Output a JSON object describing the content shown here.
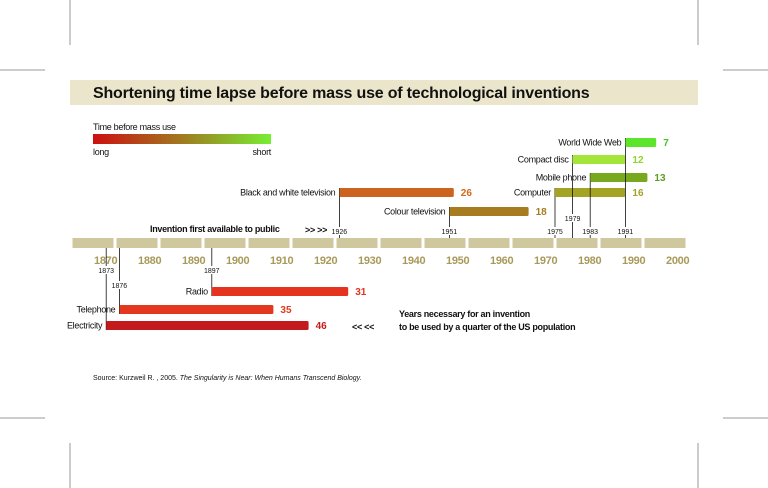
{
  "header": {
    "title": "Shortening time lapse before mass use of technological inventions"
  },
  "legend": {
    "title": "Time before mass use",
    "low_label": "long",
    "high_label": "short",
    "gradient_colors": [
      "#cc1010",
      "#a07a20",
      "#77ee33"
    ]
  },
  "annotations": {
    "invention_label": "Invention first available to public",
    "right_arrows": ">> >>",
    "years_note_line1": "Years necessary for an invention",
    "years_note_line2": "to be used by a quarter of the US population",
    "left_arrows": "<< <<"
  },
  "source": {
    "prefix": "Source: Kurzweil R. , 2005. ",
    "title": "The Singularity is Near: When Humans Transcend Biology."
  },
  "chart_data": {
    "type": "timeline-bar",
    "title": "Shortening time lapse before mass use of technological inventions",
    "xlabel": "",
    "ylabel": "",
    "xlim": [
      1865,
      2005
    ],
    "tick_labels": [
      "1870",
      "1880",
      "1890",
      "1900",
      "1910",
      "1920",
      "1930",
      "1940",
      "1950",
      "1960",
      "1970",
      "1980",
      "1990",
      "2000"
    ],
    "tick_values": [
      1870,
      1880,
      1890,
      1900,
      1910,
      1920,
      1930,
      1940,
      1950,
      1960,
      1970,
      1980,
      1990,
      2000
    ],
    "series": [
      {
        "name": "Electricity",
        "start": 1873,
        "years": 46,
        "year_label": "1873",
        "value_label": "46",
        "color": "#c31a1e",
        "value_color": "#c31a1e",
        "side": "below"
      },
      {
        "name": "Telephone",
        "start": 1876,
        "years": 35,
        "year_label": "1876",
        "value_label": "35",
        "color": "#e3381f",
        "value_color": "#e3381f",
        "side": "below"
      },
      {
        "name": "Radio",
        "start": 1897,
        "years": 31,
        "year_label": "1897",
        "value_label": "31",
        "color": "#e4331f",
        "value_color": "#e4331f",
        "side": "below"
      },
      {
        "name": "Black and white television",
        "start": 1926,
        "years": 26,
        "year_label": "1926",
        "value_label": "26",
        "color": "#cc6420",
        "value_color": "#d2691e",
        "side": "above"
      },
      {
        "name": "Colour television",
        "start": 1951,
        "years": 18,
        "year_label": "1951",
        "value_label": "18",
        "color": "#a67c1e",
        "value_color": "#a67c1e",
        "side": "above"
      },
      {
        "name": "Computer",
        "start": 1975,
        "years": 16,
        "year_label": "1975",
        "value_label": "16",
        "color": "#a5a324",
        "value_color": "#a5a324",
        "side": "above"
      },
      {
        "name": "Mobile phone",
        "start": 1983,
        "years": 13,
        "year_label": "1983",
        "value_label": "13",
        "color": "#78a81e",
        "value_color": "#5aa01e",
        "side": "above"
      },
      {
        "name": "Compact disc",
        "start": 1979,
        "years": 12,
        "year_label": "1979",
        "value_label": "12",
        "color": "#a3e639",
        "value_color": "#8fd62a",
        "side": "above"
      },
      {
        "name": "World Wide Web",
        "start": 1991,
        "years": 7,
        "year_label": "1991",
        "value_label": "7",
        "color": "#5ce52b",
        "value_color": "#3cc820",
        "side": "above"
      }
    ]
  }
}
